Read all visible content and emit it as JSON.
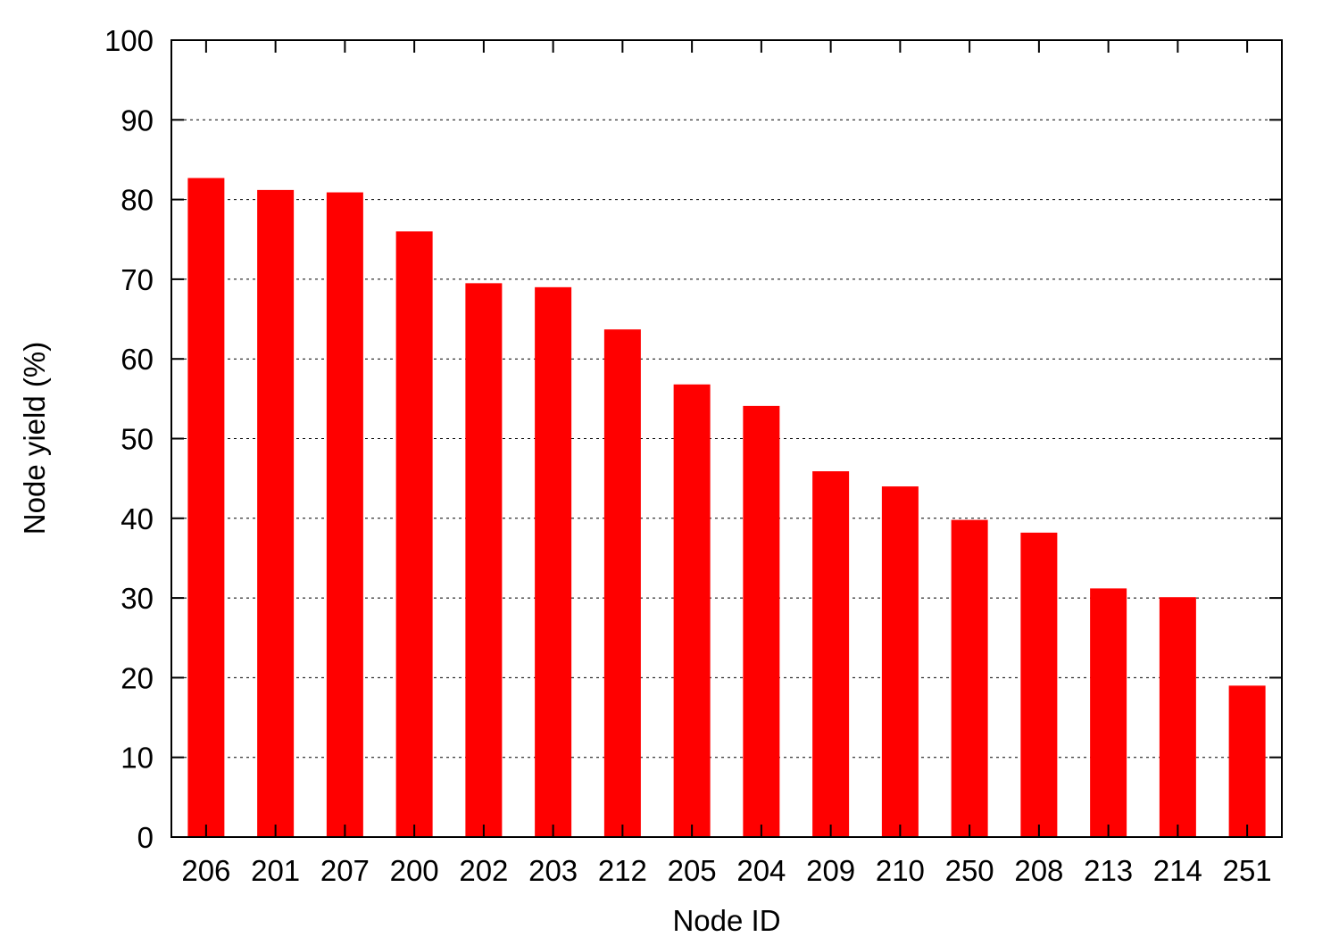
{
  "chart_data": {
    "type": "bar",
    "title": "",
    "xlabel": "Node ID",
    "ylabel": "Node yield (%)",
    "ylim": [
      0,
      100
    ],
    "yticks": [
      "0",
      "10",
      "20",
      "30",
      "40",
      "50",
      "60",
      "70",
      "80",
      "90",
      "100"
    ],
    "grid": true,
    "bar_color": "#ff0000",
    "categories": [
      "206",
      "201",
      "207",
      "200",
      "202",
      "203",
      "212",
      "205",
      "204",
      "209",
      "210",
      "250",
      "208",
      "213",
      "214",
      "251"
    ],
    "values": [
      82.7,
      81.2,
      80.9,
      76.0,
      69.5,
      69.0,
      63.7,
      56.8,
      54.1,
      45.9,
      44.0,
      39.8,
      38.2,
      31.2,
      30.1,
      19.0
    ]
  }
}
